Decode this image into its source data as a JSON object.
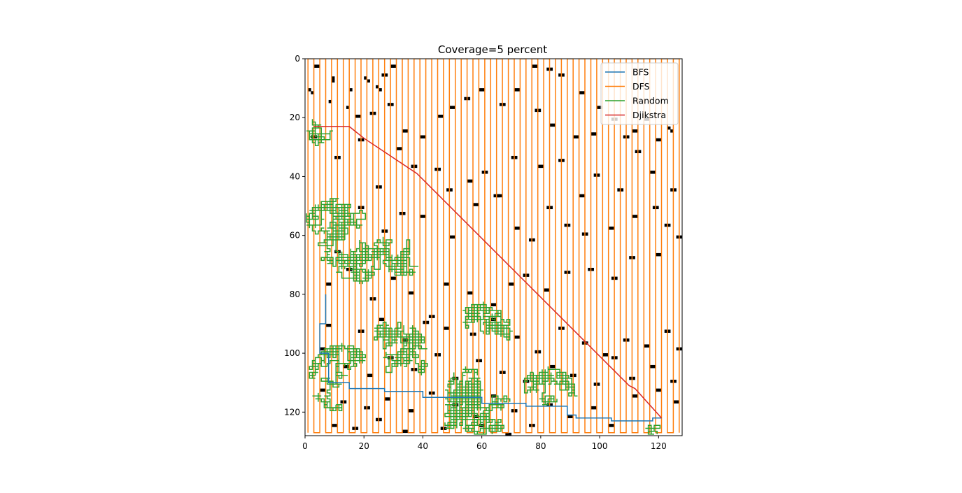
{
  "chart_data": {
    "type": "line",
    "title": "Coverage=5 percent",
    "xlabel": "",
    "ylabel": "",
    "xlim": [
      0,
      128
    ],
    "ylim": [
      128,
      0
    ],
    "y_inverted": true,
    "x_ticks": [
      0,
      20,
      40,
      60,
      80,
      100,
      120
    ],
    "y_ticks": [
      0,
      20,
      40,
      60,
      80,
      100,
      120
    ],
    "grid": false,
    "legend_position": "top-right",
    "background": "occupancy grid image: white free cells, black obstacle cells (~5% coverage)",
    "obstacles": [
      [
        3,
        2
      ],
      [
        4,
        2
      ],
      [
        9,
        6
      ],
      [
        9,
        7
      ],
      [
        15,
        10
      ],
      [
        20,
        6
      ],
      [
        21,
        7
      ],
      [
        24,
        9
      ],
      [
        25,
        10
      ],
      [
        26,
        5
      ],
      [
        27,
        5
      ],
      [
        29,
        2
      ],
      [
        30,
        2
      ],
      [
        1,
        10
      ],
      [
        2,
        11
      ],
      [
        8,
        14
      ],
      [
        14,
        16
      ],
      [
        17,
        19
      ],
      [
        18,
        19
      ],
      [
        22,
        18
      ],
      [
        23,
        18
      ],
      [
        28,
        15
      ],
      [
        29,
        15
      ],
      [
        33,
        24
      ],
      [
        34,
        24
      ],
      [
        39,
        26
      ],
      [
        40,
        26
      ],
      [
        45,
        19
      ],
      [
        46,
        19
      ],
      [
        49,
        16
      ],
      [
        50,
        16
      ],
      [
        54,
        13
      ],
      [
        55,
        13
      ],
      [
        59,
        10
      ],
      [
        60,
        10
      ],
      [
        66,
        15
      ],
      [
        67,
        15
      ],
      [
        71,
        10
      ],
      [
        72,
        10
      ],
      [
        77,
        2
      ],
      [
        78,
        2
      ],
      [
        82,
        3
      ],
      [
        83,
        3
      ],
      [
        86,
        5
      ],
      [
        87,
        5
      ],
      [
        93,
        11
      ],
      [
        94,
        11
      ],
      [
        99,
        16
      ],
      [
        100,
        16
      ],
      [
        104,
        20
      ],
      [
        105,
        20
      ],
      [
        111,
        24
      ],
      [
        112,
        24
      ],
      [
        119,
        27
      ],
      [
        120,
        27
      ],
      [
        123,
        23
      ],
      [
        124,
        24
      ],
      [
        78,
        17
      ],
      [
        79,
        17
      ],
      [
        83,
        22
      ],
      [
        84,
        22
      ],
      [
        91,
        26
      ],
      [
        92,
        26
      ],
      [
        97,
        25
      ],
      [
        98,
        25
      ],
      [
        108,
        26
      ],
      [
        109,
        26
      ],
      [
        115,
        20
      ],
      [
        116,
        20
      ],
      [
        2,
        26
      ],
      [
        3,
        26
      ],
      [
        10,
        33
      ],
      [
        11,
        33
      ],
      [
        18,
        27
      ],
      [
        19,
        27
      ],
      [
        24,
        43
      ],
      [
        25,
        43
      ],
      [
        31,
        30
      ],
      [
        32,
        30
      ],
      [
        36,
        36
      ],
      [
        37,
        36
      ],
      [
        44,
        37
      ],
      [
        45,
        37
      ],
      [
        48,
        44
      ],
      [
        49,
        44
      ],
      [
        55,
        41
      ],
      [
        56,
        41
      ],
      [
        60,
        38
      ],
      [
        61,
        38
      ],
      [
        65,
        46
      ],
      [
        66,
        46
      ],
      [
        70,
        33
      ],
      [
        71,
        33
      ],
      [
        79,
        36
      ],
      [
        80,
        36
      ],
      [
        86,
        34
      ],
      [
        87,
        34
      ],
      [
        93,
        46
      ],
      [
        94,
        46
      ],
      [
        98,
        39
      ],
      [
        99,
        39
      ],
      [
        106,
        44
      ],
      [
        107,
        44
      ],
      [
        112,
        31
      ],
      [
        113,
        31
      ],
      [
        117,
        38
      ],
      [
        118,
        38
      ],
      [
        124,
        44
      ],
      [
        125,
        44
      ],
      [
        10,
        65
      ],
      [
        11,
        65
      ],
      [
        18,
        50
      ],
      [
        19,
        50
      ],
      [
        26,
        58
      ],
      [
        27,
        58
      ],
      [
        32,
        52
      ],
      [
        33,
        52
      ],
      [
        39,
        53
      ],
      [
        40,
        53
      ],
      [
        49,
        60
      ],
      [
        50,
        60
      ],
      [
        57,
        49
      ],
      [
        58,
        49
      ],
      [
        64,
        46
      ],
      [
        65,
        46
      ],
      [
        71,
        57
      ],
      [
        72,
        57
      ],
      [
        76,
        61
      ],
      [
        77,
        61
      ],
      [
        82,
        50
      ],
      [
        83,
        50
      ],
      [
        88,
        56
      ],
      [
        89,
        56
      ],
      [
        94,
        59
      ],
      [
        95,
        59
      ],
      [
        103,
        57
      ],
      [
        104,
        57
      ],
      [
        111,
        53
      ],
      [
        112,
        53
      ],
      [
        118,
        50
      ],
      [
        119,
        50
      ],
      [
        122,
        56
      ],
      [
        123,
        56
      ],
      [
        126,
        60
      ],
      [
        127,
        60
      ],
      [
        7,
        76
      ],
      [
        8,
        76
      ],
      [
        14,
        71
      ],
      [
        15,
        71
      ],
      [
        22,
        81
      ],
      [
        23,
        81
      ],
      [
        29,
        74
      ],
      [
        30,
        74
      ],
      [
        35,
        79
      ],
      [
        36,
        79
      ],
      [
        42,
        87
      ],
      [
        43,
        87
      ],
      [
        47,
        76
      ],
      [
        48,
        76
      ],
      [
        55,
        79
      ],
      [
        56,
        79
      ],
      [
        63,
        83
      ],
      [
        64,
        83
      ],
      [
        69,
        76
      ],
      [
        70,
        76
      ],
      [
        74,
        73
      ],
      [
        75,
        73
      ],
      [
        81,
        78
      ],
      [
        82,
        78
      ],
      [
        88,
        72
      ],
      [
        89,
        72
      ],
      [
        96,
        71
      ],
      [
        97,
        71
      ],
      [
        104,
        74
      ],
      [
        105,
        74
      ],
      [
        110,
        67
      ],
      [
        111,
        67
      ],
      [
        119,
        66
      ],
      [
        120,
        66
      ],
      [
        7,
        90
      ],
      [
        8,
        90
      ],
      [
        18,
        92
      ],
      [
        19,
        92
      ],
      [
        25,
        88
      ],
      [
        26,
        88
      ],
      [
        33,
        95
      ],
      [
        34,
        95
      ],
      [
        40,
        89
      ],
      [
        41,
        89
      ],
      [
        47,
        91
      ],
      [
        48,
        91
      ],
      [
        56,
        93
      ],
      [
        57,
        93
      ],
      [
        63,
        88
      ],
      [
        64,
        88
      ],
      [
        71,
        94
      ],
      [
        72,
        94
      ],
      [
        78,
        99
      ],
      [
        79,
        99
      ],
      [
        86,
        91
      ],
      [
        87,
        91
      ],
      [
        94,
        96
      ],
      [
        95,
        96
      ],
      [
        101,
        100
      ],
      [
        102,
        100
      ],
      [
        108,
        95
      ],
      [
        109,
        95
      ],
      [
        115,
        97
      ],
      [
        116,
        97
      ],
      [
        122,
        92
      ],
      [
        123,
        92
      ],
      [
        126,
        98
      ],
      [
        127,
        98
      ],
      [
        5,
        98
      ],
      [
        6,
        98
      ],
      [
        13,
        104
      ],
      [
        14,
        104
      ],
      [
        21,
        107
      ],
      [
        22,
        107
      ],
      [
        28,
        101
      ],
      [
        29,
        101
      ],
      [
        36,
        105
      ],
      [
        37,
        105
      ],
      [
        44,
        100
      ],
      [
        45,
        100
      ],
      [
        50,
        108
      ],
      [
        51,
        108
      ],
      [
        58,
        102
      ],
      [
        59,
        102
      ],
      [
        66,
        106
      ],
      [
        67,
        106
      ],
      [
        74,
        109
      ],
      [
        75,
        109
      ],
      [
        83,
        104
      ],
      [
        84,
        104
      ],
      [
        90,
        107
      ],
      [
        91,
        107
      ],
      [
        98,
        110
      ],
      [
        99,
        110
      ],
      [
        104,
        101
      ],
      [
        105,
        101
      ],
      [
        110,
        108
      ],
      [
        111,
        108
      ],
      [
        117,
        104
      ],
      [
        118,
        104
      ],
      [
        124,
        109
      ],
      [
        125,
        109
      ],
      [
        5,
        112
      ],
      [
        6,
        112
      ],
      [
        12,
        116
      ],
      [
        13,
        116
      ],
      [
        20,
        118
      ],
      [
        21,
        118
      ],
      [
        27,
        115
      ],
      [
        28,
        115
      ],
      [
        35,
        119
      ],
      [
        36,
        119
      ],
      [
        42,
        113
      ],
      [
        43,
        113
      ],
      [
        50,
        117
      ],
      [
        51,
        117
      ],
      [
        57,
        121
      ],
      [
        58,
        121
      ],
      [
        63,
        114
      ],
      [
        64,
        114
      ],
      [
        70,
        119
      ],
      [
        71,
        119
      ],
      [
        76,
        124
      ],
      [
        77,
        124
      ],
      [
        82,
        117
      ],
      [
        83,
        117
      ],
      [
        89,
        121
      ],
      [
        90,
        121
      ],
      [
        97,
        118
      ],
      [
        98,
        118
      ],
      [
        103,
        124
      ],
      [
        104,
        124
      ],
      [
        111,
        114
      ],
      [
        112,
        114
      ],
      [
        119,
        112
      ],
      [
        120,
        112
      ],
      [
        125,
        116
      ],
      [
        126,
        116
      ],
      [
        9,
        124
      ],
      [
        10,
        124
      ],
      [
        16,
        125
      ],
      [
        17,
        125
      ],
      [
        24,
        122
      ],
      [
        25,
        122
      ],
      [
        33,
        126
      ],
      [
        34,
        126
      ],
      [
        46,
        125
      ],
      [
        47,
        125
      ],
      [
        59,
        124
      ],
      [
        60,
        124
      ],
      [
        68,
        127
      ],
      [
        69,
        127
      ]
    ],
    "series": [
      {
        "name": "BFS",
        "color": "#1f77b4",
        "x": [
          7,
          7,
          5,
          5,
          8,
          8,
          15,
          15,
          27,
          27,
          40,
          40,
          60,
          60,
          75,
          75,
          89,
          89,
          92,
          92,
          104,
          104,
          118,
          118,
          121
        ],
        "y": [
          80,
          90,
          90,
          100,
          100,
          110,
          110,
          112,
          112,
          113,
          113,
          115,
          115,
          117,
          117,
          118,
          118,
          121,
          121,
          122,
          122,
          123,
          123,
          122,
          122
        ]
      },
      {
        "name": "DFS",
        "color": "#ff7f0e",
        "pattern": "boustrophedon",
        "columns": [
          [
            1,
            3
          ],
          [
            5,
            7
          ],
          [
            9,
            11
          ],
          [
            13,
            15
          ],
          [
            17,
            19
          ],
          [
            21,
            23
          ],
          [
            25,
            27
          ],
          [
            29,
            31
          ],
          [
            33,
            35
          ],
          [
            37,
            39
          ],
          [
            41,
            43
          ],
          [
            45,
            47
          ],
          [
            49,
            51
          ],
          [
            53,
            55
          ],
          [
            57,
            59
          ],
          [
            61,
            63
          ],
          [
            65,
            67
          ],
          [
            69,
            71
          ],
          [
            73,
            75
          ],
          [
            77,
            79
          ],
          [
            81,
            83
          ],
          [
            85,
            87
          ],
          [
            89,
            91
          ],
          [
            93,
            95
          ],
          [
            97,
            99
          ],
          [
            101,
            103
          ],
          [
            105,
            107
          ],
          [
            109,
            111
          ],
          [
            113,
            115
          ],
          [
            117,
            119
          ],
          [
            121,
            123
          ],
          [
            125,
            127
          ]
        ],
        "y_range": [
          0,
          127
        ]
      },
      {
        "name": "Random",
        "color": "#2ca02c",
        "pattern": "random walk",
        "clusters": [
          {
            "cx": 6,
            "cy": 24,
            "r": 6
          },
          {
            "cx": 12,
            "cy": 62,
            "r": 16
          },
          {
            "cx": 33,
            "cy": 66,
            "r": 8
          },
          {
            "cx": 12,
            "cy": 108,
            "r": 12
          },
          {
            "cx": 30,
            "cy": 100,
            "r": 12
          },
          {
            "cx": 46,
            "cy": 112,
            "r": 14
          },
          {
            "cx": 60,
            "cy": 92,
            "r": 10
          },
          {
            "cx": 82,
            "cy": 114,
            "r": 10
          },
          {
            "cx": 60,
            "cy": 118,
            "r": 10
          },
          {
            "cx": 118,
            "cy": 125,
            "r": 3
          }
        ]
      },
      {
        "name": "Djikstra",
        "color": "#d62728",
        "x": [
          3,
          15,
          20,
          38,
          70,
          110,
          112,
          121
        ],
        "y": [
          23,
          23,
          27,
          39,
          71,
          111,
          112,
          122
        ]
      }
    ]
  }
}
